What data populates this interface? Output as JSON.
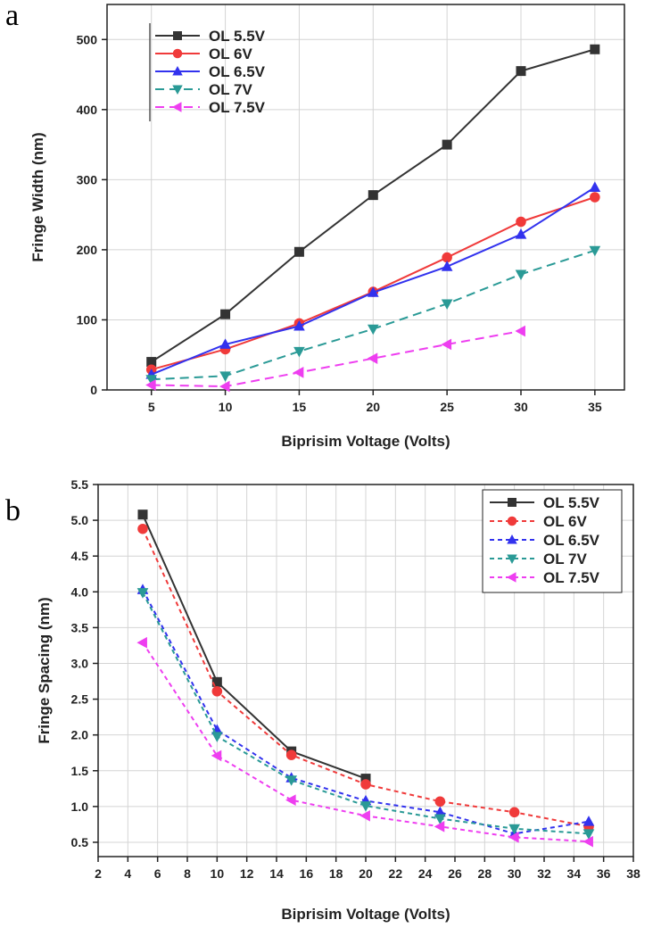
{
  "panels": [
    "a",
    "b"
  ],
  "chart_data": [
    {
      "type": "line",
      "panel": "a",
      "xlabel": "Biprisim Voltage (Volts)",
      "ylabel": "Fringe Width (nm)",
      "xlim": [
        2,
        37
      ],
      "ylim": [
        0,
        550
      ],
      "xticks": [
        5,
        10,
        15,
        20,
        25,
        30,
        35
      ],
      "yticks": [
        0,
        100,
        200,
        300,
        400,
        500
      ],
      "grid": true,
      "legend_position": "top-left",
      "series": [
        {
          "name": "OL 5.5V",
          "color": "#333333",
          "marker": "square",
          "dash": "",
          "x": [
            5,
            10,
            15,
            20,
            25,
            30,
            35
          ],
          "y": [
            40,
            108,
            197,
            278,
            350,
            455,
            486
          ]
        },
        {
          "name": "OL 6V",
          "color": "#f03a3a",
          "marker": "circle",
          "dash": "",
          "x": [
            5,
            10,
            15,
            20,
            25,
            30,
            35
          ],
          "y": [
            29,
            58,
            95,
            140,
            189,
            240,
            275
          ]
        },
        {
          "name": "OL 6.5V",
          "color": "#3232ee",
          "marker": "triangle-up",
          "dash": "",
          "x": [
            5,
            10,
            15,
            20,
            25,
            30,
            35
          ],
          "y": [
            22,
            65,
            91,
            139,
            176,
            222,
            289
          ]
        },
        {
          "name": "OL 7V",
          "color": "#2a9a96",
          "marker": "triangle-down",
          "dash": "10,6",
          "x": [
            5,
            10,
            15,
            20,
            25,
            30,
            35
          ],
          "y": [
            15,
            20,
            55,
            87,
            123,
            165,
            199
          ]
        },
        {
          "name": "OL 7.5V",
          "color": "#ee3ef0",
          "marker": "triangle-left",
          "dash": "10,6",
          "x": [
            5,
            10,
            15,
            20,
            25,
            30
          ],
          "y": [
            7,
            5,
            25,
            45,
            65,
            84
          ]
        }
      ]
    },
    {
      "type": "line",
      "panel": "b",
      "xlabel": "Biprisim Voltage (Volts)",
      "ylabel": "Fringe Spacing (nm)",
      "xlim": [
        2,
        38
      ],
      "ylim": [
        0.3,
        5.5
      ],
      "xticks": [
        2,
        4,
        6,
        8,
        10,
        12,
        14,
        16,
        18,
        20,
        22,
        24,
        26,
        28,
        30,
        32,
        34,
        36,
        38
      ],
      "yticks": [
        0.5,
        1.0,
        1.5,
        2.0,
        2.5,
        3.0,
        3.5,
        4.0,
        4.5,
        5.0,
        5.5
      ],
      "grid": true,
      "legend_position": "top-right",
      "series": [
        {
          "name": "OL 5.5V",
          "color": "#333333",
          "marker": "square",
          "dash": "",
          "x": [
            5,
            10,
            15,
            20
          ],
          "y": [
            5.08,
            2.74,
            1.77,
            1.39
          ]
        },
        {
          "name": "OL 6V",
          "color": "#f03a3a",
          "marker": "circle",
          "dash": "5,4",
          "x": [
            5,
            10,
            15,
            20,
            25,
            30,
            35
          ],
          "y": [
            4.88,
            2.61,
            1.72,
            1.31,
            1.07,
            0.92,
            0.72
          ]
        },
        {
          "name": "OL 6.5V",
          "color": "#3232ee",
          "marker": "triangle-up",
          "dash": "5,4",
          "x": [
            5,
            10,
            15,
            20,
            25,
            30,
            35
          ],
          "y": [
            4.03,
            2.07,
            1.4,
            1.08,
            0.92,
            0.62,
            0.79
          ]
        },
        {
          "name": "OL 7V",
          "color": "#2a9a96",
          "marker": "triangle-down",
          "dash": "5,4",
          "x": [
            5,
            10,
            15,
            20,
            25,
            30,
            35
          ],
          "y": [
            3.99,
            1.98,
            1.37,
            1.01,
            0.83,
            0.69,
            0.62
          ]
        },
        {
          "name": "OL 7.5V",
          "color": "#ee3ef0",
          "marker": "triangle-left",
          "dash": "5,4",
          "x": [
            5,
            10,
            15,
            20,
            25,
            30,
            35
          ],
          "y": [
            3.29,
            1.71,
            1.09,
            0.87,
            0.72,
            0.57,
            0.51
          ]
        }
      ]
    }
  ]
}
